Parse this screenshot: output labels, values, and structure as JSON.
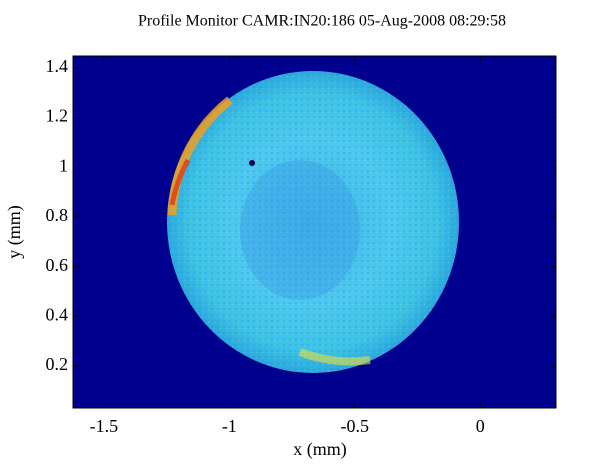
{
  "chart_data": {
    "type": "image",
    "title": "Profile Monitor CAMR:IN20:186 05-Aug-2008 08:29:58",
    "x_label": "x  (mm)",
    "y_label": "y  (mm)",
    "xlim": [
      -1.623,
      0.302
    ],
    "ylim": [
      0.031,
      1.448
    ],
    "xticks": [
      -1.5,
      -1,
      -0.5,
      0
    ],
    "yticks": [
      0.2,
      0.4,
      0.6,
      0.8,
      1,
      1.2,
      1.4
    ]
  }
}
